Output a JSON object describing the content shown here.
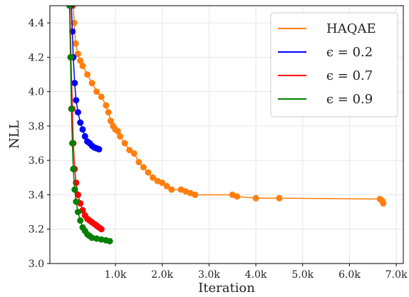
{
  "chart_data": {
    "type": "line",
    "xlabel": "Iteration",
    "ylabel": "NLL",
    "xlim": [
      -400,
      7150
    ],
    "ylim": [
      3.0,
      4.5
    ],
    "x_ticks": [
      1000,
      2000,
      3000,
      4000,
      5000,
      6000,
      7000
    ],
    "x_tick_labels": [
      "1.0k",
      "2.0k",
      "3.0k",
      "4.0k",
      "5.0k",
      "6.0k",
      "7.0k"
    ],
    "y_ticks": [
      3.0,
      3.2,
      3.4,
      3.6,
      3.8,
      4.0,
      4.2,
      4.4
    ],
    "y_tick_labels": [
      "3.0",
      "3.2",
      "3.4",
      "3.6",
      "3.8",
      "4.0",
      "4.2",
      "4.4"
    ],
    "grid": true,
    "legend_position": "top-right",
    "series": [
      {
        "name": "HAQAE",
        "color": "#ff7f0e",
        "markers": true,
        "x": [
          100,
          120,
          150,
          200,
          250,
          300,
          400,
          500,
          600,
          700,
          800,
          850,
          900,
          950,
          1000,
          1050,
          1100,
          1200,
          1300,
          1400,
          1500,
          1600,
          1700,
          1800,
          1900,
          2000,
          2100,
          2200,
          2400,
          2500,
          2600,
          2700,
          3500,
          3600,
          4000,
          4500,
          6650,
          6700,
          6720
        ],
        "y": [
          4.5,
          4.4,
          4.28,
          4.22,
          4.18,
          4.15,
          4.1,
          4.05,
          4.0,
          3.97,
          3.92,
          3.88,
          3.83,
          3.8,
          3.78,
          3.77,
          3.74,
          3.7,
          3.66,
          3.64,
          3.59,
          3.56,
          3.53,
          3.5,
          3.48,
          3.47,
          3.45,
          3.43,
          3.43,
          3.42,
          3.41,
          3.4,
          3.4,
          3.39,
          3.38,
          3.38,
          3.375,
          3.365,
          3.35
        ]
      },
      {
        "name": "ϵ = 0.2",
        "color": "#0000ff",
        "markers": true,
        "x": [
          60,
          80,
          100,
          130,
          160,
          200,
          250,
          300,
          350,
          400,
          450,
          500,
          550,
          600,
          650
        ],
        "y": [
          4.5,
          4.35,
          4.2,
          4.05,
          3.95,
          3.88,
          3.82,
          3.78,
          3.74,
          3.71,
          3.7,
          3.685,
          3.675,
          3.67,
          3.665
        ]
      },
      {
        "name": "ϵ = 0.7",
        "color": "#ff0000",
        "markers": true,
        "x": [
          30,
          50,
          80,
          100,
          130,
          160,
          200,
          250,
          300,
          350,
          400,
          450,
          500,
          550,
          600,
          650,
          700
        ],
        "y": [
          4.5,
          4.2,
          3.9,
          3.7,
          3.55,
          3.47,
          3.4,
          3.35,
          3.31,
          3.28,
          3.26,
          3.25,
          3.24,
          3.23,
          3.22,
          3.21,
          3.2
        ]
      },
      {
        "name": "ϵ = 0.9",
        "color": "#008000",
        "markers": true,
        "x": [
          20,
          40,
          60,
          80,
          100,
          130,
          160,
          200,
          250,
          300,
          350,
          400,
          450,
          500,
          600,
          700,
          800,
          880
        ],
        "y": [
          4.5,
          4.2,
          3.9,
          3.7,
          3.55,
          3.43,
          3.36,
          3.3,
          3.25,
          3.21,
          3.19,
          3.17,
          3.16,
          3.15,
          3.145,
          3.14,
          3.135,
          3.13
        ]
      }
    ]
  }
}
